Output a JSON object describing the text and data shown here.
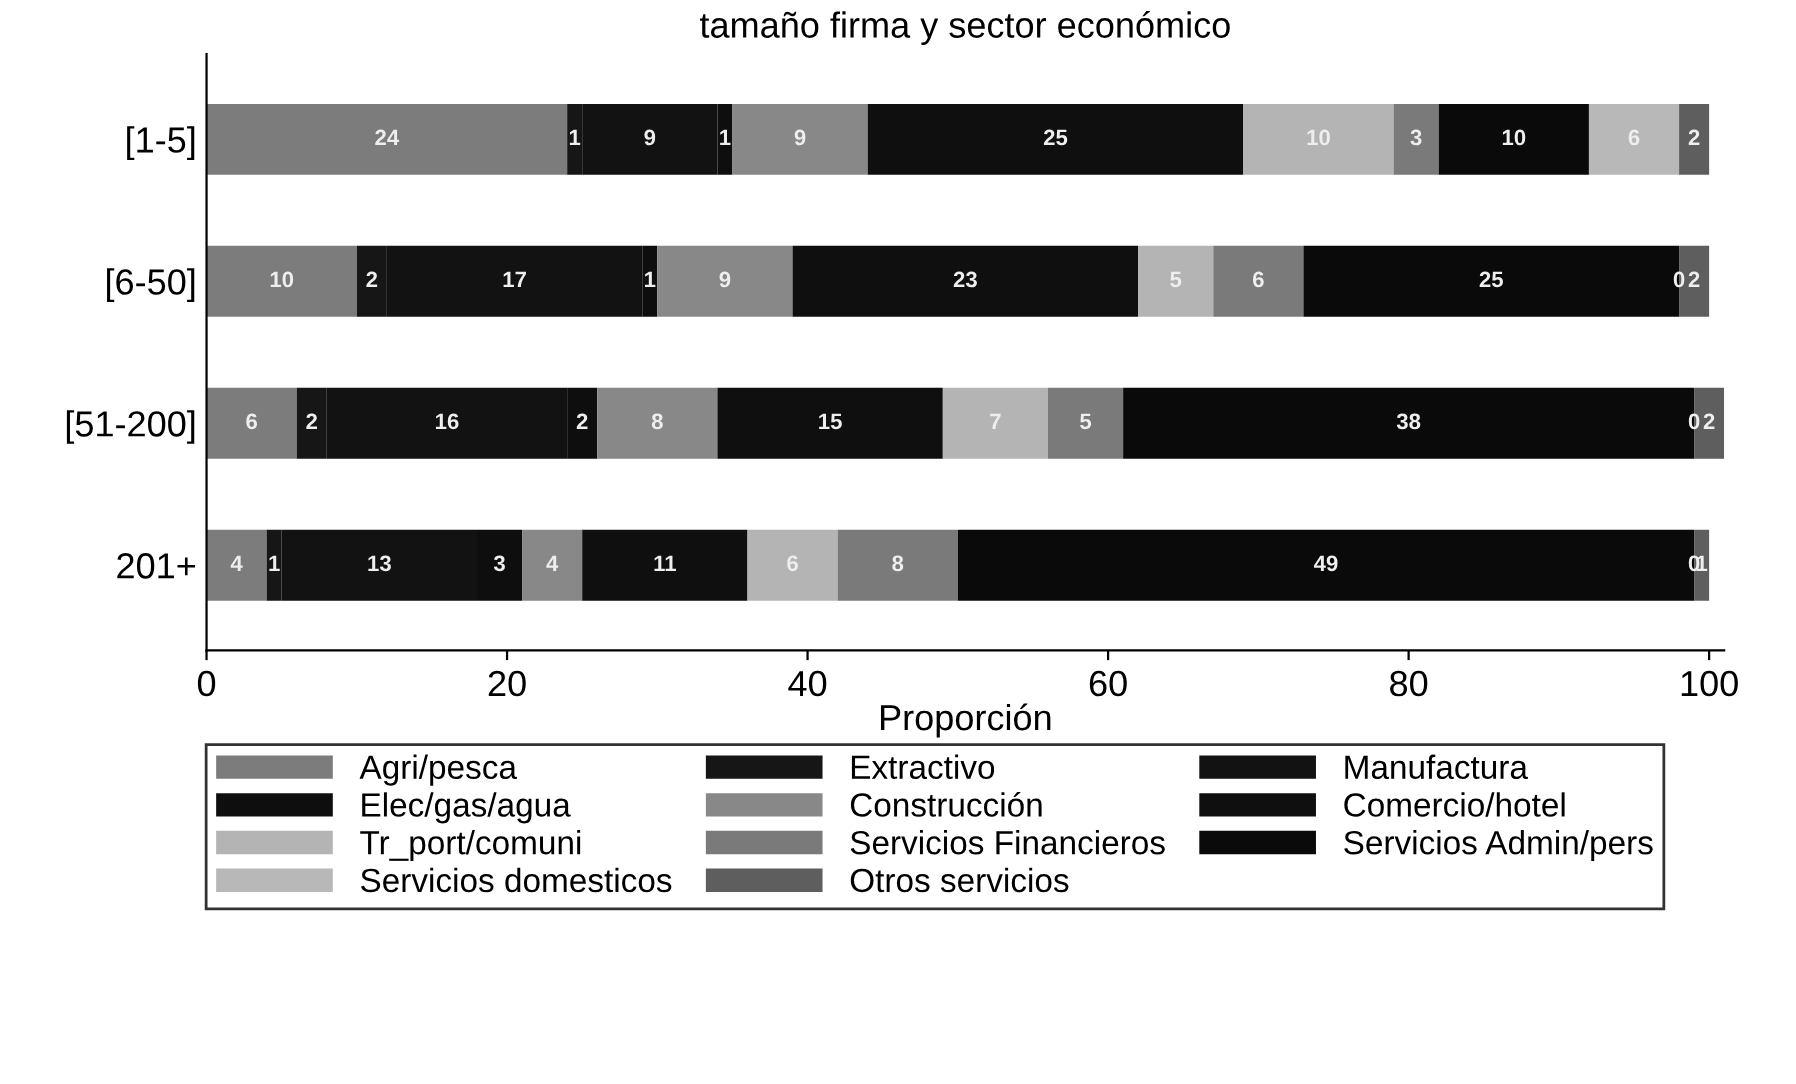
{
  "chart_data": {
    "type": "bar",
    "orientation": "horizontal",
    "stacked": true,
    "title": "tamaño firma y sector económico",
    "xlabel": "Proporción",
    "categories": [
      "[1-5]",
      "[6-50]",
      "[51-200]",
      "201+"
    ],
    "xlim": [
      0,
      101
    ],
    "xticks": [
      0,
      20,
      40,
      60,
      80,
      100
    ],
    "grid": false,
    "legend": "bottom",
    "data_labels": true,
    "series": [
      {
        "name": "Agri/pesca",
        "color": "#7c7c7c",
        "values": [
          24,
          10,
          6,
          4
        ]
      },
      {
        "name": "Extractivo",
        "color": "#161616",
        "values": [
          1,
          2,
          2,
          1
        ]
      },
      {
        "name": "Manufactura",
        "color": "#121212",
        "values": [
          9,
          17,
          16,
          13
        ]
      },
      {
        "name": "Elec/gas/agua",
        "color": "#0e0e0e",
        "values": [
          1,
          1,
          2,
          3
        ]
      },
      {
        "name": "Construcción",
        "color": "#888888",
        "values": [
          9,
          9,
          8,
          4
        ]
      },
      {
        "name": "Comercio/hotel",
        "color": "#0f0f0f",
        "values": [
          25,
          23,
          15,
          11
        ]
      },
      {
        "name": "Tr_port/comuni",
        "color": "#b4b4b4",
        "values": [
          10,
          5,
          7,
          6
        ]
      },
      {
        "name": "Servicios Financieros",
        "color": "#7a7a7a",
        "values": [
          3,
          6,
          5,
          8
        ]
      },
      {
        "name": "Servicios Admin/pers",
        "color": "#0a0a0a",
        "values": [
          10,
          25,
          38,
          49
        ]
      },
      {
        "name": "Servicios domesticos",
        "color": "#b8b8b8",
        "values": [
          6,
          0,
          0,
          0
        ]
      },
      {
        "name": "Otros servicios",
        "color": "#5e5e5e",
        "values": [
          2,
          2,
          2,
          1
        ]
      }
    ]
  }
}
